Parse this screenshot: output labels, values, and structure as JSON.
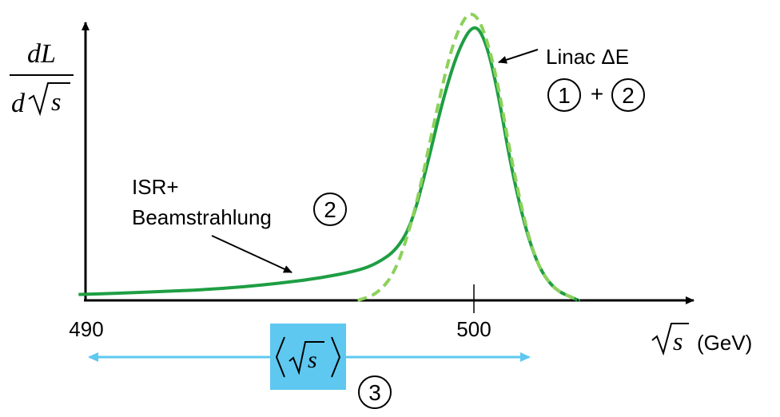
{
  "chart_data": {
    "type": "line",
    "y_axis_label": {
      "numerator": "dL",
      "denominator": "d√s"
    },
    "x_axis_label": {
      "symbol": "s",
      "unit": "(GeV)"
    },
    "tick_labels": [
      {
        "x": 490,
        "label": "490"
      },
      {
        "x": 500,
        "label": "500"
      }
    ],
    "xlim": [
      489.8,
      511.5
    ],
    "ylim": [
      0,
      1.0
    ],
    "series": [
      {
        "line_style": "solid",
        "color": "#1e9e43",
        "x": [
          489.8,
          491,
          492,
          493,
          494,
          495,
          496,
          497,
          497.5,
          498,
          498.4,
          498.8,
          499.2,
          499.6,
          500,
          500.3,
          500.6,
          501,
          501.5,
          502,
          502.7
        ],
        "y": [
          0.02,
          0.025,
          0.03,
          0.036,
          0.045,
          0.058,
          0.075,
          0.1,
          0.125,
          0.17,
          0.26,
          0.46,
          0.68,
          0.85,
          0.94,
          0.88,
          0.72,
          0.42,
          0.16,
          0.04,
          0.0
        ]
      },
      {
        "line_style": "dashed",
        "color": "#8cd15b",
        "x": [
          497.0,
          497.5,
          498,
          498.5,
          499,
          499.5,
          500,
          500.5,
          501,
          501.5,
          502,
          502.7
        ],
        "y": [
          0.0,
          0.02,
          0.1,
          0.31,
          0.62,
          0.9,
          1.0,
          0.82,
          0.45,
          0.16,
          0.04,
          0.0
        ]
      }
    ],
    "annotations": [
      {
        "text": "Linac ΔE",
        "circles": [
          "1",
          "2"
        ],
        "joiner": "+"
      },
      {
        "lines": [
          "ISR+",
          "Beamstrahlung"
        ],
        "circle": "2"
      },
      {
        "box_symbol": "s",
        "circle": "3"
      }
    ],
    "legend": "none"
  }
}
